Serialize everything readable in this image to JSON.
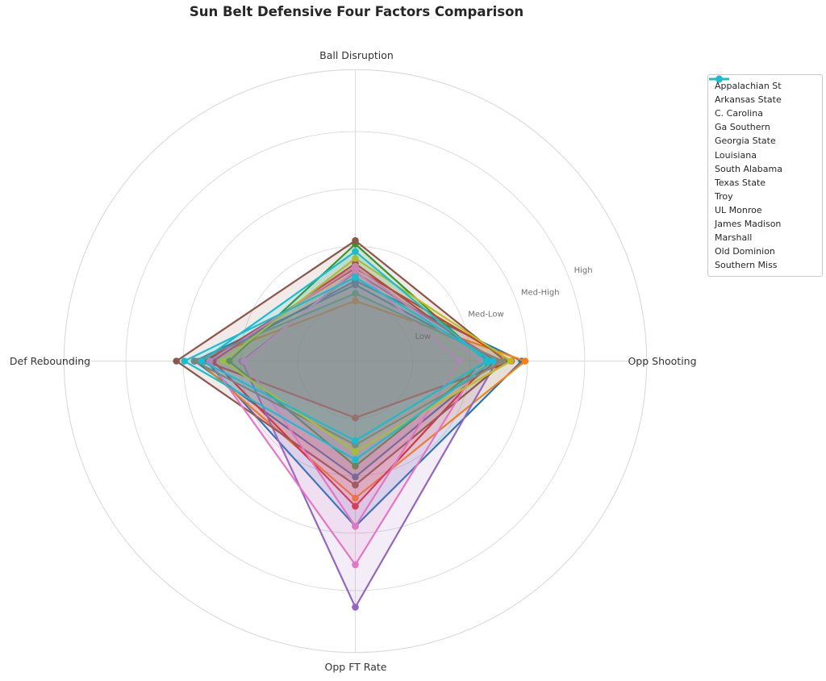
{
  "chart_data": {
    "type": "radar",
    "title": "Sun Belt Defensive Four Factors Comparison",
    "categories": [
      "Ball Disruption",
      "Opp Shooting",
      "Opp FT Rate",
      "Def Rebounding"
    ],
    "radial_ticks": {
      "labels": [
        "Low",
        "Med-Low",
        "Med-High",
        "High"
      ],
      "values": [
        1,
        2,
        3,
        4
      ]
    },
    "r_max": 5.08,
    "grid": true,
    "grid_color": "#d9d9d9",
    "axis_label_color": "#333333",
    "tick_label_color": "#6e6e6e",
    "title_color": "#262626",
    "legend_position": "upper right",
    "series": [
      {
        "name": "Appalachian St",
        "color": "#1f77b4",
        "values": [
          1.4,
          2.9,
          2.88,
          2.6
        ]
      },
      {
        "name": "Arkansas State",
        "color": "#1f77b4",
        "values": [
          1.33,
          2.45,
          2.02,
          2.8
        ]
      },
      {
        "name": "C. Carolina",
        "color": "#ff7f0e",
        "values": [
          1.05,
          2.96,
          2.39,
          2.74
        ]
      },
      {
        "name": "Ga Southern",
        "color": "#2ca02c",
        "values": [
          2.04,
          2.28,
          1.83,
          2.2
        ]
      },
      {
        "name": "Georgia State",
        "color": "#d62728",
        "values": [
          1.7,
          2.35,
          2.53,
          2.48
        ]
      },
      {
        "name": "Louisiana",
        "color": "#d62728",
        "values": [
          1.62,
          2.72,
          0.99,
          2.62
        ]
      },
      {
        "name": "South Alabama",
        "color": "#9467bd",
        "values": [
          1.55,
          2.47,
          4.29,
          1.98
        ]
      },
      {
        "name": "Texas State",
        "color": "#8c564b",
        "values": [
          2.1,
          2.62,
          2.16,
          3.12
        ]
      },
      {
        "name": "Troy",
        "color": "#e377c2",
        "values": [
          1.58,
          1.82,
          2.88,
          1.94
        ]
      },
      {
        "name": "UL Monroe",
        "color": "#e377c2",
        "values": [
          1.65,
          2.2,
          3.55,
          2.54
        ]
      },
      {
        "name": "James Madison",
        "color": "#7f7f7f",
        "values": [
          1.18,
          2.57,
          1.46,
          2.81
        ]
      },
      {
        "name": "Marshall",
        "color": "#bcbd22",
        "values": [
          1.79,
          2.71,
          1.58,
          2.31
        ]
      },
      {
        "name": "Old Dominion",
        "color": "#17becf",
        "values": [
          1.91,
          2.29,
          1.39,
          2.68
        ]
      },
      {
        "name": "Southern Miss",
        "color": "#17becf",
        "values": [
          1.46,
          2.4,
          1.72,
          2.98
        ]
      }
    ]
  }
}
